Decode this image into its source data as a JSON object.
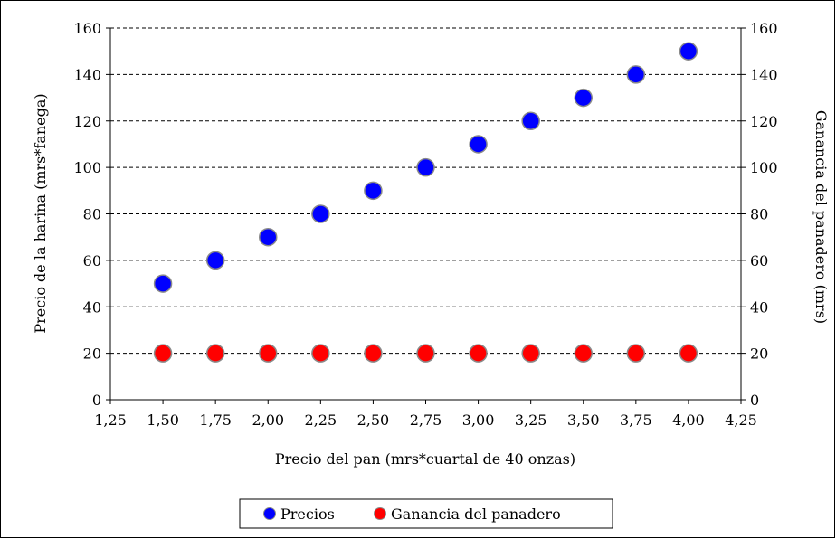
{
  "chart_data": {
    "type": "scatter",
    "title": "",
    "xlabel": "Precio del pan (mrs*cuartal de 40 onzas)",
    "ylabel": "Precio de la harina (mrs*fanega)",
    "y2label": "Ganancia del panadero (mrs)",
    "xlim": [
      1.25,
      4.25
    ],
    "ylim": [
      0,
      160
    ],
    "y2lim": [
      0,
      160
    ],
    "x_ticks": [
      "1,25",
      "1,50",
      "1,75",
      "2,00",
      "2,25",
      "2,50",
      "2,75",
      "3,00",
      "3,25",
      "3,50",
      "3,75",
      "4,00",
      "4,25"
    ],
    "y_ticks": [
      "0",
      "20",
      "40",
      "60",
      "80",
      "100",
      "120",
      "140",
      "160"
    ],
    "y2_ticks": [
      "0",
      "20",
      "40",
      "60",
      "80",
      "100",
      "120",
      "140",
      "160"
    ],
    "grid": "horizontal dashed",
    "legend_position": "bottom",
    "series": [
      {
        "name": "Precios",
        "color": "#0000ff",
        "x": [
          1.5,
          1.75,
          2.0,
          2.25,
          2.5,
          2.75,
          3.0,
          3.25,
          3.5,
          3.75,
          4.0
        ],
        "y": [
          50,
          60,
          70,
          80,
          90,
          100,
          110,
          120,
          130,
          140,
          150
        ]
      },
      {
        "name": "Ganancia del panadero",
        "color": "#ff0000",
        "x": [
          1.5,
          1.75,
          2.0,
          2.25,
          2.5,
          2.75,
          3.0,
          3.25,
          3.5,
          3.75,
          4.0
        ],
        "y": [
          20,
          20,
          20,
          20,
          20,
          20,
          20,
          20,
          20,
          20,
          20
        ]
      }
    ]
  }
}
